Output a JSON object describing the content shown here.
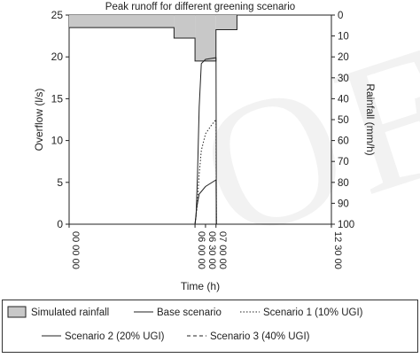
{
  "chart_data": {
    "type": "line",
    "title": "Peak runoff for different greening scenario",
    "xlabel": "Time (h)",
    "ylabel_left": "Overflow (l/s)",
    "ylabel_right": "Rainfall (mm/h)",
    "x_range_hours": [
      0,
      12.5
    ],
    "y_left_range": [
      0,
      25
    ],
    "y_right_range": [
      0,
      100
    ],
    "y_right_inverted": true,
    "x_ticks": [
      {
        "hour": 0,
        "label": "00 00 00"
      },
      {
        "hour": 6,
        "label": "06 00 00"
      },
      {
        "hour": 6.5,
        "label": "06 30 00"
      },
      {
        "hour": 7,
        "label": "07 00 00"
      },
      {
        "hour": 12.5,
        "label": "12 30 00"
      }
    ],
    "y_left_ticks": [
      0,
      5,
      10,
      15,
      20,
      25
    ],
    "y_right_ticks": [
      0,
      10,
      20,
      30,
      40,
      50,
      60,
      70,
      80,
      90,
      100
    ],
    "rainfall": {
      "name": "Simulated rainfall",
      "steps": [
        {
          "start": 0,
          "end": 5,
          "value": 6
        },
        {
          "start": 5,
          "end": 6,
          "value": 11
        },
        {
          "start": 6,
          "end": 7,
          "value": 22
        },
        {
          "start": 7,
          "end": 8,
          "value": 7
        },
        {
          "start": 8,
          "end": 12.5,
          "value": 0
        }
      ]
    },
    "series": [
      {
        "name": "Base scenario",
        "style": "solid",
        "points": [
          [
            0,
            0
          ],
          [
            6,
            0
          ],
          [
            6.05,
            1
          ],
          [
            6.12,
            6
          ],
          [
            6.2,
            14
          ],
          [
            6.3,
            19.2
          ],
          [
            6.5,
            19.7
          ],
          [
            7,
            19.9
          ],
          [
            7.02,
            0
          ],
          [
            12.5,
            0
          ]
        ]
      },
      {
        "name": "Scenario 1 (10% UGI)",
        "style": "dotted",
        "points": [
          [
            0,
            0
          ],
          [
            6,
            0
          ],
          [
            6.1,
            2
          ],
          [
            6.2,
            6
          ],
          [
            6.3,
            8.8
          ],
          [
            6.5,
            10.8
          ],
          [
            6.8,
            11.9
          ],
          [
            7,
            12.5
          ],
          [
            7.02,
            0
          ],
          [
            12.5,
            0
          ]
        ]
      },
      {
        "name": "Scenario 2 (20% UGI)",
        "style": "solid",
        "points": [
          [
            0,
            0
          ],
          [
            6,
            0
          ],
          [
            6.08,
            2
          ],
          [
            6.2,
            3.6
          ],
          [
            6.5,
            4.5
          ],
          [
            7,
            5.3
          ],
          [
            7.02,
            0
          ],
          [
            12.5,
            0
          ]
        ]
      },
      {
        "name": "Scenario 3 (40% UGI)",
        "style": "dashed",
        "points": [
          [
            0,
            0
          ],
          [
            12.5,
            0
          ]
        ]
      }
    ],
    "legend_position": "bottom",
    "grid": false
  }
}
